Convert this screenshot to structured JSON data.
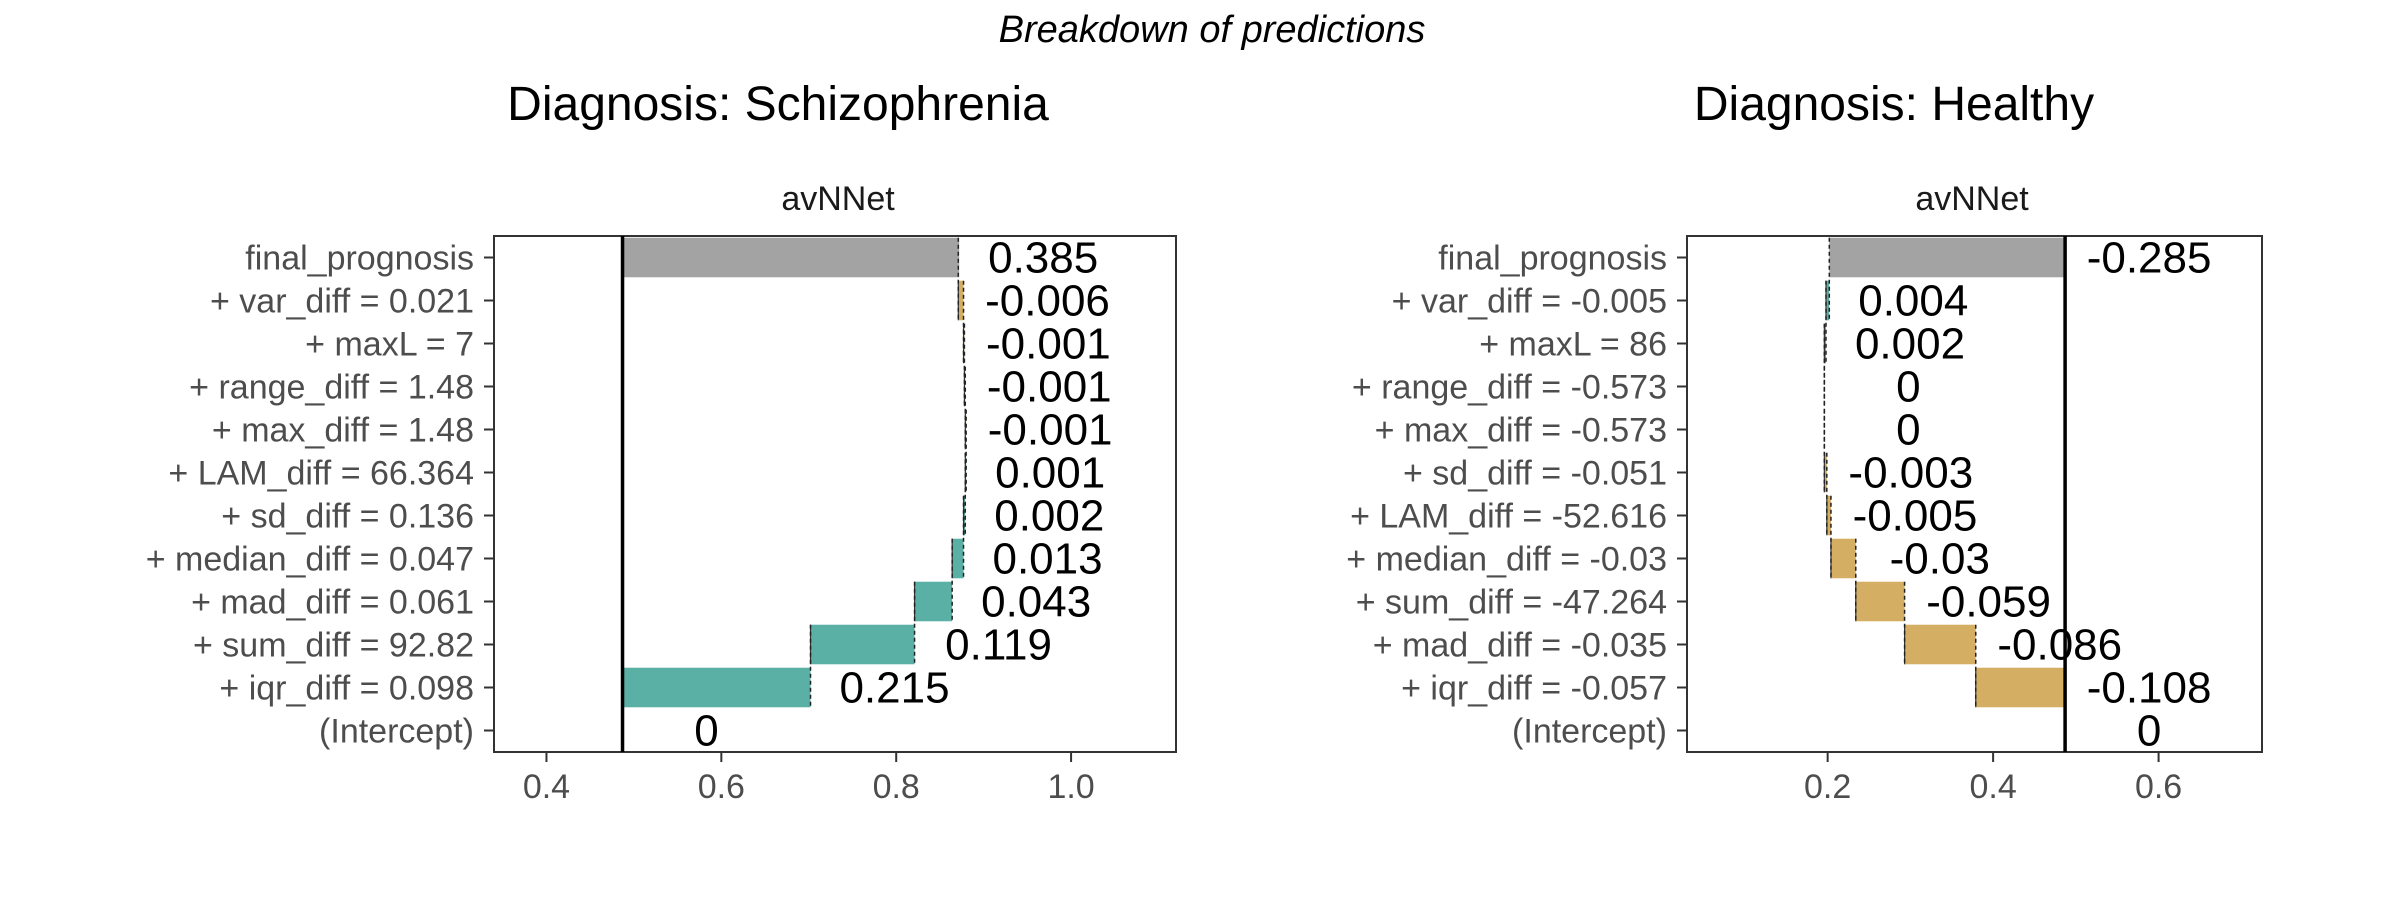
{
  "title": "Breakdown of predictions",
  "colors": {
    "positive": "#5BB0A5",
    "negative": "#D4AE63",
    "final": "#A3A3A3",
    "baseline": "#000000",
    "axis_text": "#4d4d4d"
  },
  "chart_data": [
    {
      "type": "bar",
      "subtype": "waterfall-breakdown",
      "title": "Diagnosis: Schizophrenia",
      "strip_label": "avNNet",
      "xlabel": "",
      "ylabel": "",
      "xlim": [
        0.34,
        1.12
      ],
      "x_ticks": [
        0.4,
        0.6,
        0.8,
        1.0
      ],
      "x_tick_labels": [
        "0.4",
        "0.6",
        "0.8",
        "1.0"
      ],
      "baseline": 0.487,
      "grid": false,
      "categories": [
        "final_prognosis",
        "+ var_diff = 0.021",
        "+ maxL = 7",
        "+ range_diff = 1.48",
        "+ max_diff = 1.48",
        "+ LAM_diff = 66.364",
        "+ sd_diff = 0.136",
        "+ median_diff = 0.047",
        "+ mad_diff = 0.061",
        "+ sum_diff = 92.82",
        "+ iqr_diff = 0.098",
        "(Intercept)"
      ],
      "contributions": [
        0.385,
        -0.006,
        -0.001,
        -0.001,
        -0.001,
        0.001,
        0.002,
        0.013,
        0.043,
        0.119,
        0.215,
        0
      ],
      "value_labels": [
        "0.385",
        "-0.006",
        "-0.001",
        "-0.001",
        "-0.001",
        "0.001",
        "0.002",
        "0.013",
        "0.043",
        "0.119",
        "0.215",
        "0"
      ]
    },
    {
      "type": "bar",
      "subtype": "waterfall-breakdown",
      "title": "Diagnosis: Healthy",
      "strip_label": "avNNet",
      "xlabel": "",
      "ylabel": "",
      "xlim": [
        0.03,
        0.725
      ],
      "x_ticks": [
        0.2,
        0.4,
        0.6
      ],
      "x_tick_labels": [
        "0.2",
        "0.4",
        "0.6"
      ],
      "baseline": 0.487,
      "grid": false,
      "categories": [
        "final_prognosis",
        "+ var_diff = -0.005",
        "+ maxL = 86",
        "+ range_diff = -0.573",
        "+ max_diff = -0.573",
        "+ sd_diff = -0.051",
        "+ LAM_diff = -52.616",
        "+ median_diff = -0.03",
        "+ sum_diff = -47.264",
        "+ mad_diff = -0.035",
        "+ iqr_diff = -0.057",
        "(Intercept)"
      ],
      "contributions": [
        -0.285,
        0.004,
        0.002,
        0,
        0,
        -0.003,
        -0.005,
        -0.03,
        -0.059,
        -0.086,
        -0.108,
        0
      ],
      "value_labels": [
        "-0.285",
        "0.004",
        "0.002",
        "0",
        "0",
        "-0.003",
        "-0.005",
        "-0.03",
        "-0.059",
        "-0.086",
        "-0.108",
        "0"
      ]
    }
  ]
}
